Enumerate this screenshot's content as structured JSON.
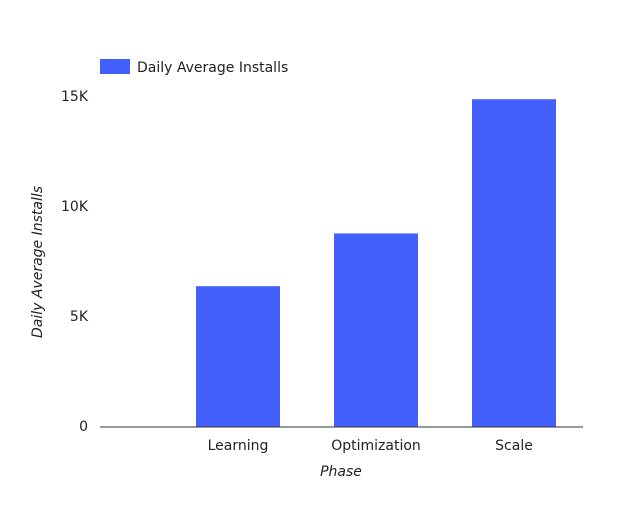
{
  "chart_data": {
    "type": "bar",
    "categories": [
      null,
      "Learning",
      "Optimization",
      "Scale"
    ],
    "series": [
      {
        "name": "Daily Average Installs",
        "color": "#4361fa",
        "values": [
          null,
          6400,
          8800,
          14900
        ]
      }
    ],
    "x_label": "Phase",
    "y_label": "Daily Average Installs",
    "ylim": [
      0,
      15000
    ],
    "yticks": [
      0,
      {
        "value": 5000,
        "label": "5K"
      },
      {
        "value": 10000,
        "label": "10K"
      },
      {
        "value": 15000,
        "label": "15K"
      }
    ],
    "grid": false,
    "legend": "top-left"
  }
}
